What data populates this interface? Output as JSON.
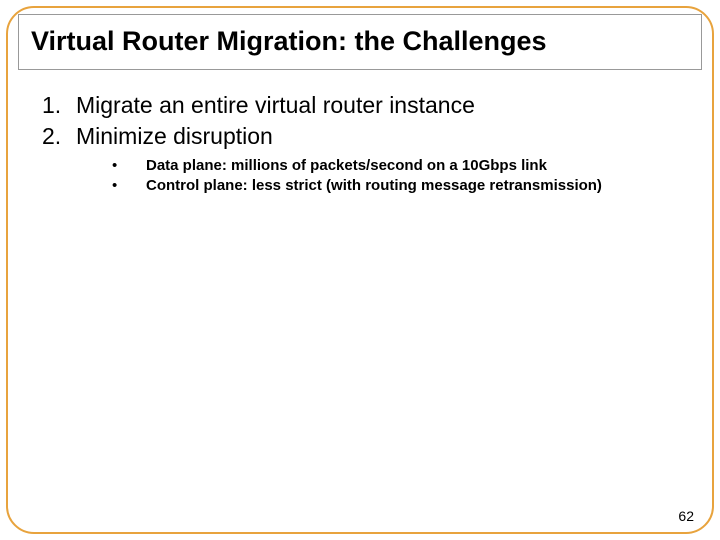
{
  "slide": {
    "title": "Virtual Router Migration: the Challenges",
    "numbered_items": [
      "Migrate an entire virtual router instance",
      "Minimize disruption"
    ],
    "sub_items": [
      "Data plane: millions of packets/second on a 10Gbps link",
      "Control plane: less strict (with routing message retransmission)"
    ],
    "page_number": "62"
  },
  "style": {
    "frame_border_color": "#e8a33d",
    "frame_border_radius": 28,
    "title_box_border_color": "#999999",
    "title_font_size": 27,
    "main_font_size": 23,
    "sub_font_size": 15,
    "text_color": "#000000",
    "background_color": "#ffffff"
  }
}
